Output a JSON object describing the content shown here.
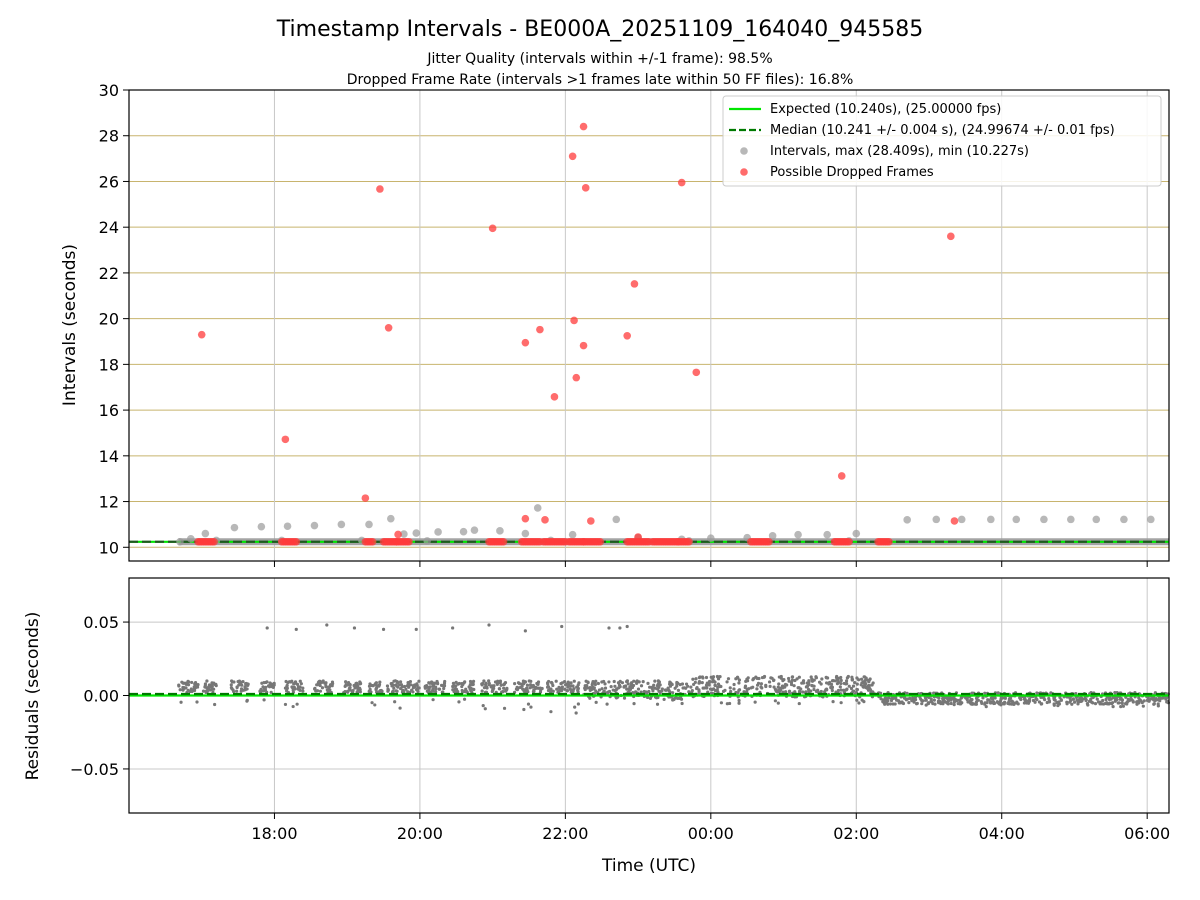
{
  "chart_data": [
    {
      "type": "scatter",
      "panel": "top",
      "title": "Timestamp Intervals - BE000A_20251109_164040_945585",
      "subtitle_lines": [
        "Jitter Quality (intervals within +/-1 frame): 98.5%",
        "Dropped Frame Rate (intervals >1 frames late within 50 FF files): 16.8%"
      ],
      "xlabel": "",
      "ylabel": "Intervals (seconds)",
      "x_unit": "hours since 16:00 UTC",
      "xlim": [
        16.0,
        30.3
      ],
      "ylim": [
        9.4,
        30
      ],
      "yticks": [
        10,
        12,
        14,
        16,
        18,
        20,
        22,
        24,
        26,
        28,
        30
      ],
      "ytick_labels": [
        "10",
        "12",
        "14",
        "16",
        "18",
        "20",
        "22",
        "24",
        "26",
        "28",
        "30"
      ],
      "legend": {
        "position": "upper-right",
        "entries": [
          "Expected (10.240s), (25.00000 fps)",
          "Median (10.241 +/- 0.004 s), (24.99674 +/- 0.01 fps)",
          "Intervals, max (28.409s), min (10.227s)",
          "Possible Dropped Frames"
        ]
      },
      "expected": 10.24,
      "median": 10.241,
      "colors": {
        "expected": "#00e600",
        "median": "#007a00",
        "intervals": "#9a9a9a",
        "dropped": "#ff3b3b",
        "hgrid": "#c8b46e",
        "vgrid": "#c8c8c8"
      },
      "interval_band": {
        "from": 16.68,
        "to": 30.3,
        "value": 10.24
      },
      "intervals": [
        [
          16.85,
          10.37
        ],
        [
          17.05,
          10.6
        ],
        [
          17.45,
          10.86
        ],
        [
          17.82,
          10.9
        ],
        [
          18.18,
          10.92
        ],
        [
          18.55,
          10.95
        ],
        [
          18.92,
          11.0
        ],
        [
          19.3,
          11.0
        ],
        [
          19.6,
          11.25
        ],
        [
          19.78,
          10.58
        ],
        [
          19.95,
          10.62
        ],
        [
          20.25,
          10.67
        ],
        [
          20.6,
          10.68
        ],
        [
          20.75,
          10.75
        ],
        [
          21.1,
          10.72
        ],
        [
          21.45,
          10.6
        ],
        [
          21.62,
          11.72
        ],
        [
          22.1,
          10.55
        ],
        [
          22.7,
          11.22
        ],
        [
          23.0,
          10.42
        ],
        [
          23.6,
          10.35
        ],
        [
          24.0,
          10.4
        ],
        [
          24.5,
          10.42
        ],
        [
          24.85,
          10.5
        ],
        [
          25.2,
          10.55
        ],
        [
          25.6,
          10.55
        ],
        [
          26.0,
          10.6
        ],
        [
          26.7,
          11.2
        ],
        [
          27.1,
          11.22
        ],
        [
          27.45,
          11.22
        ],
        [
          27.85,
          11.22
        ],
        [
          28.2,
          11.22
        ],
        [
          28.58,
          11.22
        ],
        [
          28.95,
          11.22
        ],
        [
          29.3,
          11.22
        ],
        [
          29.68,
          11.22
        ],
        [
          30.05,
          11.22
        ],
        [
          16.7,
          10.24
        ],
        [
          17.2,
          10.3
        ],
        [
          18.1,
          10.3
        ],
        [
          19.2,
          10.3
        ],
        [
          20.1,
          10.28
        ],
        [
          21.8,
          10.3
        ],
        [
          23.7,
          10.28
        ],
        [
          25.9,
          10.28
        ]
      ],
      "dropped_clusters": [
        [
          16.95,
          17.17
        ],
        [
          18.1,
          18.3
        ],
        [
          19.25,
          19.35
        ],
        [
          19.5,
          19.68
        ],
        [
          19.68,
          19.85
        ],
        [
          20.95,
          21.15
        ],
        [
          21.4,
          21.65
        ],
        [
          21.7,
          22.0
        ],
        [
          22.05,
          22.25
        ],
        [
          22.25,
          22.48
        ],
        [
          22.85,
          23.15
        ],
        [
          23.2,
          23.55
        ],
        [
          23.55,
          23.7
        ],
        [
          24.55,
          24.8
        ],
        [
          25.7,
          25.9
        ],
        [
          26.3,
          26.45
        ]
      ],
      "dropped": [
        [
          17.0,
          19.3
        ],
        [
          18.15,
          14.72
        ],
        [
          19.25,
          12.15
        ],
        [
          19.45,
          25.67
        ],
        [
          19.57,
          19.6
        ],
        [
          19.7,
          10.56
        ],
        [
          21.0,
          23.95
        ],
        [
          21.45,
          18.95
        ],
        [
          21.45,
          11.25
        ],
        [
          21.65,
          19.52
        ],
        [
          21.72,
          11.2
        ],
        [
          21.85,
          16.58
        ],
        [
          22.1,
          27.1
        ],
        [
          22.12,
          19.92
        ],
        [
          22.15,
          17.42
        ],
        [
          22.25,
          28.4
        ],
        [
          22.25,
          18.82
        ],
        [
          22.28,
          25.72
        ],
        [
          22.35,
          11.15
        ],
        [
          22.85,
          19.25
        ],
        [
          22.95,
          21.52
        ],
        [
          23.0,
          10.45
        ],
        [
          23.6,
          25.95
        ],
        [
          23.8,
          17.65
        ],
        [
          25.8,
          13.12
        ],
        [
          27.3,
          23.6
        ],
        [
          27.35,
          11.15
        ]
      ]
    },
    {
      "type": "scatter",
      "panel": "bottom",
      "xlabel": "Time (UTC)",
      "ylabel": "Residuals (seconds)",
      "x_unit": "hours since 16:00 UTC",
      "xlim": [
        16.0,
        30.3
      ],
      "ylim": [
        -0.08,
        0.08
      ],
      "yticks": [
        -0.05,
        0.0,
        0.05
      ],
      "ytick_labels": [
        "−0.05",
        "0.00",
        "0.05"
      ],
      "xticks": [
        18,
        20,
        22,
        24,
        26,
        28,
        30
      ],
      "xtick_labels": [
        "18:00",
        "20:00",
        "22:00",
        "00:00",
        "02:00",
        "04:00",
        "06:00"
      ],
      "expected": 0.0,
      "median": 0.001,
      "outliers": [
        [
          17.9,
          0.046
        ],
        [
          18.3,
          0.045
        ],
        [
          18.72,
          0.048
        ],
        [
          19.1,
          0.046
        ],
        [
          19.5,
          0.045
        ],
        [
          19.95,
          0.045
        ],
        [
          20.45,
          0.046
        ],
        [
          20.95,
          0.048
        ],
        [
          21.45,
          0.044
        ],
        [
          21.95,
          0.047
        ],
        [
          22.6,
          0.046
        ],
        [
          22.75,
          0.046
        ],
        [
          22.85,
          0.047
        ]
      ],
      "segments": [
        {
          "from": 16.68,
          "to": 16.95,
          "center": 0.006,
          "spread": 0.004,
          "neg_tail": -0.008
        },
        {
          "from": 17.0,
          "to": 17.2,
          "center": 0.006,
          "spread": 0.004,
          "neg_tail": -0.008
        },
        {
          "from": 17.4,
          "to": 17.65,
          "center": 0.006,
          "spread": 0.004,
          "neg_tail": -0.006
        },
        {
          "from": 17.8,
          "to": 18.0,
          "center": 0.006,
          "spread": 0.004,
          "neg_tail": -0.006
        },
        {
          "from": 18.15,
          "to": 18.4,
          "center": 0.006,
          "spread": 0.004,
          "neg_tail": -0.008
        },
        {
          "from": 18.55,
          "to": 18.8,
          "center": 0.006,
          "spread": 0.004,
          "neg_tail": -0.006
        },
        {
          "from": 18.95,
          "to": 19.2,
          "center": 0.006,
          "spread": 0.004,
          "neg_tail": -0.008
        },
        {
          "from": 19.3,
          "to": 19.5,
          "center": 0.006,
          "spread": 0.004,
          "neg_tail": -0.012
        },
        {
          "from": 19.55,
          "to": 20.0,
          "center": 0.006,
          "spread": 0.004,
          "neg_tail": -0.01
        },
        {
          "from": 20.05,
          "to": 20.35,
          "center": 0.006,
          "spread": 0.004,
          "neg_tail": -0.004
        },
        {
          "from": 20.45,
          "to": 20.75,
          "center": 0.006,
          "spread": 0.004,
          "neg_tail": -0.006
        },
        {
          "from": 20.85,
          "to": 21.2,
          "center": 0.006,
          "spread": 0.004,
          "neg_tail": -0.01
        },
        {
          "from": 21.3,
          "to": 21.7,
          "center": 0.006,
          "spread": 0.004,
          "neg_tail": -0.01
        },
        {
          "from": 21.75,
          "to": 22.2,
          "center": 0.006,
          "spread": 0.004,
          "neg_tail": -0.012
        },
        {
          "from": 22.25,
          "to": 23.6,
          "center": 0.004,
          "spread": 0.006,
          "neg_tail": -0.006
        },
        {
          "from": 23.6,
          "to": 26.25,
          "center": 0.006,
          "spread": 0.007,
          "neg_tail": -0.006
        },
        {
          "from": 26.3,
          "to": 30.3,
          "center": -0.002,
          "spread": 0.004,
          "neg_tail": -0.008
        }
      ]
    }
  ]
}
